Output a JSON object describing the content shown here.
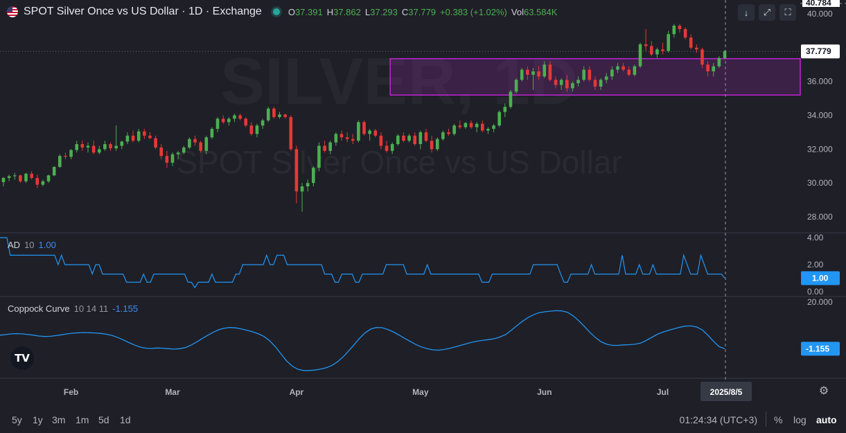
{
  "header": {
    "flag_icon": "us-flag-icon",
    "title": "SPOT Silver Once vs US Dollar · 1D · Exchange",
    "status_color": "#26a69a",
    "open_label": "O",
    "open_value": "37.391",
    "high_label": "H",
    "high_value": "37.862",
    "low_label": "L",
    "low_value": "37.293",
    "close_label": "C",
    "close_value": "37.779",
    "change_value": "+0.383 (+1.02%)",
    "volume_label": "Vol",
    "volume_value": "63.584K"
  },
  "toolbar": {
    "down_icon": "arrow-down-icon",
    "expand_icon": "expand-icon",
    "fullscreen_icon": "fullscreen-icon"
  },
  "watermark": {
    "symbol": "SILVER, 1D",
    "description": "SPOT Silver Once vs US Dollar"
  },
  "colors": {
    "background": "#1f1f27",
    "up": "#4caf50",
    "down": "#e53935",
    "indicator_line": "#2196f3",
    "box_border": "#c026d3",
    "box_fill": "rgba(156, 39, 176, 0.22)"
  },
  "chart_data": {
    "type": "candlestick",
    "price_axis": {
      "ticks": [
        "40.000",
        "38.000",
        "36.000",
        "34.000",
        "32.000",
        "30.000",
        "28.000"
      ],
      "top_label": "40.784",
      "last_price_label": "37.779",
      "last_price": 37.779,
      "ylim": [
        27.0,
        40.8
      ]
    },
    "time_axis": {
      "labels": [
        "Feb",
        "Mar",
        "Apr",
        "May",
        "Jun",
        "Jul"
      ],
      "crosshair_label": "2025/8/5"
    },
    "rectangle_zone": {
      "top": 37.35,
      "bottom": 35.2,
      "from_index": 69,
      "to_index": "right-edge"
    },
    "candles": [
      [
        30.05,
        30.35,
        29.8,
        30.3
      ],
      [
        30.3,
        30.5,
        30.1,
        30.4
      ],
      [
        30.4,
        30.6,
        30.2,
        30.45
      ],
      [
        30.45,
        30.5,
        30.0,
        30.1
      ],
      [
        30.1,
        30.6,
        30.0,
        30.55
      ],
      [
        30.55,
        30.7,
        30.2,
        30.3
      ],
      [
        30.3,
        30.5,
        29.7,
        29.9
      ],
      [
        29.9,
        30.2,
        29.8,
        30.1
      ],
      [
        30.1,
        30.5,
        30.0,
        30.45
      ],
      [
        30.45,
        31.0,
        30.4,
        30.95
      ],
      [
        30.95,
        31.7,
        30.9,
        31.6
      ],
      [
        31.6,
        31.8,
        31.4,
        31.55
      ],
      [
        31.55,
        32.0,
        31.4,
        31.95
      ],
      [
        31.95,
        32.5,
        31.8,
        32.3
      ],
      [
        32.3,
        32.5,
        31.9,
        32.1
      ],
      [
        32.1,
        32.4,
        31.8,
        32.2
      ],
      [
        32.2,
        32.5,
        31.7,
        31.8
      ],
      [
        31.8,
        32.2,
        31.7,
        32.0
      ],
      [
        32.0,
        32.5,
        31.9,
        32.3
      ],
      [
        32.3,
        32.4,
        31.9,
        32.05
      ],
      [
        32.05,
        33.4,
        31.9,
        32.2
      ],
      [
        32.2,
        32.5,
        32.0,
        32.45
      ],
      [
        32.45,
        33.0,
        32.3,
        32.8
      ],
      [
        32.8,
        33.1,
        32.4,
        32.5
      ],
      [
        32.5,
        33.2,
        32.4,
        33.05
      ],
      [
        33.05,
        33.2,
        32.6,
        32.8
      ],
      [
        32.8,
        33.0,
        32.6,
        32.65
      ],
      [
        32.65,
        32.8,
        32.0,
        32.1
      ],
      [
        32.1,
        32.3,
        31.4,
        31.6
      ],
      [
        31.6,
        31.9,
        30.9,
        31.2
      ],
      [
        31.2,
        31.8,
        31.0,
        31.7
      ],
      [
        31.7,
        31.9,
        31.4,
        31.8
      ],
      [
        31.8,
        32.2,
        31.7,
        32.1
      ],
      [
        32.1,
        32.7,
        32.0,
        32.6
      ],
      [
        32.6,
        32.8,
        32.2,
        32.4
      ],
      [
        32.4,
        32.5,
        31.8,
        31.9
      ],
      [
        31.9,
        32.8,
        31.7,
        32.7
      ],
      [
        32.7,
        33.3,
        32.6,
        33.2
      ],
      [
        33.2,
        33.9,
        33.0,
        33.8
      ],
      [
        33.8,
        34.0,
        33.5,
        33.6
      ],
      [
        33.6,
        33.9,
        33.4,
        33.8
      ],
      [
        33.8,
        34.1,
        33.6,
        34.0
      ],
      [
        34.0,
        34.1,
        33.7,
        33.8
      ],
      [
        33.8,
        33.9,
        33.3,
        33.4
      ],
      [
        33.4,
        33.6,
        32.8,
        32.9
      ],
      [
        32.9,
        33.5,
        32.7,
        33.4
      ],
      [
        33.4,
        33.8,
        33.2,
        33.7
      ],
      [
        33.7,
        34.5,
        33.6,
        34.4
      ],
      [
        34.4,
        34.5,
        33.8,
        33.9
      ],
      [
        33.9,
        34.2,
        33.8,
        34.05
      ],
      [
        34.05,
        34.1,
        33.8,
        33.9
      ],
      [
        33.9,
        34.0,
        31.9,
        32.0
      ],
      [
        32.0,
        32.2,
        28.8,
        29.5
      ],
      [
        29.5,
        30.0,
        28.3,
        29.8
      ],
      [
        29.8,
        30.2,
        29.5,
        30.0
      ],
      [
        30.0,
        31.0,
        29.8,
        30.9
      ],
      [
        30.9,
        32.4,
        30.7,
        32.2
      ],
      [
        32.2,
        32.5,
        31.8,
        31.9
      ],
      [
        31.9,
        32.5,
        31.7,
        32.4
      ],
      [
        32.4,
        33.0,
        32.2,
        32.9
      ],
      [
        32.9,
        33.1,
        32.5,
        32.7
      ],
      [
        32.7,
        33.0,
        32.4,
        32.6
      ],
      [
        32.6,
        32.9,
        32.3,
        32.5
      ],
      [
        32.5,
        33.7,
        32.4,
        33.6
      ],
      [
        33.6,
        33.7,
        32.8,
        32.9
      ],
      [
        32.9,
        33.2,
        32.5,
        33.1
      ],
      [
        33.1,
        33.2,
        32.7,
        32.8
      ],
      [
        32.8,
        33.0,
        32.0,
        32.2
      ],
      [
        32.2,
        32.5,
        31.8,
        31.9
      ],
      [
        31.9,
        32.4,
        31.7,
        32.3
      ],
      [
        32.3,
        32.9,
        32.2,
        32.8
      ],
      [
        32.8,
        33.0,
        32.4,
        32.5
      ],
      [
        32.5,
        32.9,
        32.4,
        32.8
      ],
      [
        32.8,
        33.0,
        32.2,
        32.3
      ],
      [
        32.3,
        33.1,
        32.0,
        33.0
      ],
      [
        33.0,
        33.2,
        32.4,
        32.5
      ],
      [
        32.5,
        32.8,
        31.8,
        32.0
      ],
      [
        32.0,
        32.7,
        31.9,
        32.6
      ],
      [
        32.6,
        33.1,
        32.5,
        33.0
      ],
      [
        33.0,
        33.2,
        32.8,
        32.9
      ],
      [
        32.9,
        33.5,
        32.8,
        33.4
      ],
      [
        33.4,
        33.7,
        33.2,
        33.3
      ],
      [
        33.3,
        33.6,
        33.2,
        33.55
      ],
      [
        33.55,
        33.7,
        33.2,
        33.3
      ],
      [
        33.3,
        33.6,
        33.0,
        33.5
      ],
      [
        33.5,
        33.7,
        33.0,
        33.1
      ],
      [
        33.1,
        33.3,
        32.9,
        33.2
      ],
      [
        33.2,
        33.5,
        33.0,
        33.4
      ],
      [
        33.4,
        34.3,
        33.3,
        34.2
      ],
      [
        34.2,
        34.7,
        33.9,
        34.5
      ],
      [
        34.5,
        35.5,
        34.4,
        35.4
      ],
      [
        35.4,
        36.2,
        35.3,
        36.1
      ],
      [
        36.1,
        36.8,
        36.0,
        36.7
      ],
      [
        36.7,
        36.9,
        36.1,
        36.4
      ],
      [
        36.4,
        36.8,
        35.5,
        36.6
      ],
      [
        36.6,
        36.9,
        36.1,
        36.3
      ],
      [
        36.3,
        37.2,
        36.2,
        37.0
      ],
      [
        37.0,
        37.2,
        36.0,
        36.1
      ],
      [
        36.1,
        36.3,
        35.6,
        35.8
      ],
      [
        35.8,
        36.2,
        35.5,
        36.1
      ],
      [
        36.1,
        36.4,
        35.4,
        35.6
      ],
      [
        35.6,
        36.0,
        35.4,
        35.9
      ],
      [
        35.9,
        36.3,
        35.7,
        36.1
      ],
      [
        36.1,
        36.9,
        36.0,
        36.7
      ],
      [
        36.7,
        36.9,
        36.0,
        36.1
      ],
      [
        36.1,
        36.3,
        35.5,
        35.7
      ],
      [
        35.7,
        36.2,
        35.5,
        36.1
      ],
      [
        36.1,
        36.5,
        35.9,
        36.3
      ],
      [
        36.3,
        36.9,
        36.1,
        36.7
      ],
      [
        36.7,
        37.1,
        36.5,
        36.9
      ],
      [
        36.9,
        37.1,
        36.6,
        36.7
      ],
      [
        36.7,
        36.9,
        36.3,
        36.4
      ],
      [
        36.4,
        37.0,
        36.3,
        36.9
      ],
      [
        36.9,
        38.3,
        36.8,
        38.2
      ],
      [
        38.2,
        39.1,
        37.8,
        38.1
      ],
      [
        38.1,
        38.4,
        37.5,
        37.6
      ],
      [
        37.6,
        38.0,
        37.4,
        37.9
      ],
      [
        37.9,
        38.3,
        37.6,
        37.8
      ],
      [
        37.8,
        39.0,
        37.7,
        38.8
      ],
      [
        38.8,
        39.4,
        38.6,
        39.3
      ],
      [
        39.3,
        39.4,
        38.9,
        39.1
      ],
      [
        39.1,
        39.2,
        38.5,
        38.6
      ],
      [
        38.6,
        38.8,
        37.9,
        38.0
      ],
      [
        38.0,
        38.2,
        37.7,
        37.9
      ],
      [
        37.9,
        38.0,
        36.8,
        37.0
      ],
      [
        37.0,
        37.2,
        36.3,
        36.6
      ],
      [
        36.6,
        37.1,
        36.3,
        36.9
      ],
      [
        36.9,
        37.5,
        36.8,
        37.391
      ],
      [
        37.391,
        37.862,
        37.293,
        37.779
      ]
    ],
    "indicators": [
      {
        "name": "AD",
        "params": "10",
        "value_label": "1.00",
        "axis_ticks": [
          "4.00",
          "2.00",
          "0.00"
        ],
        "ylim": [
          0.0,
          4.0
        ],
        "values": [
          4.0,
          4.0,
          4.0,
          2.7,
          2.7,
          2.7,
          2.7,
          2.7,
          2.7,
          2.7,
          2.7,
          2.7,
          2.7,
          2.7,
          2.7,
          2.7,
          2.7,
          2.0,
          2.7,
          2.0,
          2.0,
          2.0,
          2.0,
          2.0,
          2.0,
          2.0,
          2.0,
          1.3,
          2.0,
          2.0,
          1.3,
          1.3,
          1.3,
          1.3,
          1.3,
          1.3,
          1.3,
          0.7,
          0.7,
          0.7,
          0.7,
          0.7,
          1.3,
          0.7,
          0.7,
          1.3,
          1.3,
          1.3,
          1.3,
          1.3,
          1.3,
          1.3,
          1.3,
          1.3,
          1.3,
          0.7,
          0.7,
          0.3,
          0.7,
          0.7,
          0.7,
          0.7,
          1.3,
          0.7,
          0.7,
          0.7,
          0.7,
          0.7,
          0.7,
          1.3,
          1.3,
          2.0,
          2.0,
          2.0,
          2.0,
          2.0,
          2.0,
          2.0,
          2.7,
          2.0,
          2.0,
          2.7,
          2.7,
          2.7,
          2.0,
          2.0,
          2.0,
          2.0,
          2.0,
          2.0,
          2.0,
          2.0,
          2.0,
          2.0,
          2.0,
          1.3,
          1.3,
          1.3,
          0.7,
          0.7,
          1.3,
          1.3,
          1.3,
          1.3,
          0.7,
          0.7,
          1.3,
          1.3,
          1.3,
          1.3,
          1.3,
          1.3,
          1.3,
          2.0,
          2.0,
          2.0,
          2.0,
          2.0,
          2.0,
          1.3,
          1.3,
          1.3,
          1.3,
          1.3,
          1.3,
          2.0,
          1.3,
          1.3,
          1.3,
          1.3,
          1.3,
          1.3,
          1.3,
          1.3,
          1.3,
          1.3,
          1.3,
          1.3,
          1.3,
          1.3,
          1.3,
          0.7,
          0.7,
          0.7,
          1.3,
          1.3,
          1.3,
          1.3,
          1.3,
          1.3,
          1.3,
          1.3,
          1.3,
          1.3,
          1.3,
          1.3,
          2.0,
          2.0,
          2.0,
          2.0,
          2.0,
          2.0,
          2.0,
          2.0,
          1.3,
          0.7,
          0.7,
          1.3,
          1.3,
          1.3,
          1.3,
          1.3,
          1.3,
          2.0,
          1.3,
          1.3,
          1.3,
          1.3,
          1.3,
          1.3,
          1.3,
          1.3,
          2.7,
          1.3,
          1.3,
          1.3,
          1.3,
          2.0,
          1.3,
          1.3,
          1.3,
          2.0,
          1.3,
          1.3,
          1.3,
          1.3,
          1.3,
          1.3,
          1.3,
          1.3,
          2.7,
          2.0,
          1.3,
          1.3,
          1.3,
          2.7,
          2.0,
          1.3,
          1.3,
          1.3,
          1.3,
          1.3,
          1.0
        ]
      },
      {
        "name": "Coppock Curve",
        "params": "10 14 11",
        "value_label": "-1.155",
        "axis_ticks": [
          "20.000"
        ],
        "ylim": [
          -12.0,
          20.0
        ],
        "values": [
          5.0,
          5.3,
          5.6,
          5.7,
          5.6,
          5.3,
          5.0,
          4.6,
          4.4,
          4.5,
          4.8,
          5.2,
          5.6,
          5.9,
          6.1,
          6.2,
          6.1,
          6.0,
          5.8,
          5.4,
          4.8,
          3.9,
          2.8,
          1.6,
          0.5,
          -0.4,
          -0.9,
          -1.0,
          -0.8,
          -0.9,
          -1.1,
          -1.3,
          -1.1,
          -0.6,
          0.5,
          1.9,
          3.5,
          5.0,
          6.4,
          7.5,
          8.2,
          8.5,
          8.3,
          7.8,
          7.2,
          6.5,
          5.6,
          4.4,
          2.5,
          -0.2,
          -3.4,
          -6.6,
          -9.0,
          -10.4,
          -11.0,
          -11.0,
          -10.8,
          -10.4,
          -9.8,
          -8.8,
          -7.2,
          -5.0,
          -2.3,
          0.6,
          3.6,
          6.1,
          7.8,
          8.5,
          8.4,
          7.6,
          6.5,
          5.1,
          3.6,
          2.2,
          0.8,
          -0.3,
          -1.1,
          -1.6,
          -1.8,
          -1.5,
          -1.0,
          -0.3,
          0.4,
          1.1,
          1.8,
          2.3,
          2.7,
          3.0,
          3.4,
          4.2,
          5.3,
          7.2,
          9.3,
          11.3,
          13.0,
          14.3,
          15.2,
          15.6,
          15.9,
          16.1,
          16.0,
          15.4,
          13.8,
          11.6,
          9.0,
          6.3,
          3.9,
          2.0,
          0.9,
          0.4,
          0.4,
          0.6,
          0.7,
          0.9,
          1.4,
          2.6,
          4.0,
          5.4,
          6.4,
          7.2,
          7.9,
          8.6,
          9.1,
          9.2,
          8.7,
          7.4,
          5.0,
          2.2,
          -0.2,
          -1.155
        ]
      }
    ]
  },
  "bottom_bar": {
    "ranges": [
      "5y",
      "1y",
      "3m",
      "1m",
      "5d",
      "1d"
    ],
    "time": "01:24:34 (UTC+3)",
    "percent_label": "%",
    "log_label": "log",
    "auto_label": "auto",
    "settings_icon": "gear-icon"
  },
  "branding": {
    "logo_text": "TV"
  }
}
